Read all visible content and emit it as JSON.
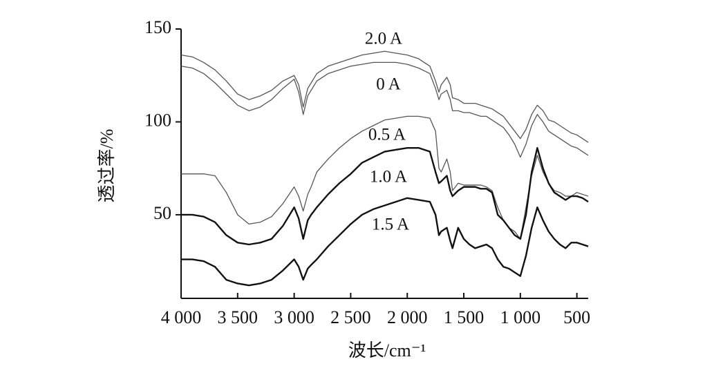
{
  "chart_data": {
    "type": "line",
    "xlabel": "波长/cm⁻¹",
    "ylabel": "透过率/%",
    "x": [
      4000,
      3900,
      3800,
      3700,
      3600,
      3500,
      3400,
      3300,
      3200,
      3100,
      3000,
      2960,
      2920,
      2880,
      2850,
      2800,
      2700,
      2600,
      2500,
      2400,
      2300,
      2200,
      2100,
      2000,
      1900,
      1800,
      1750,
      1720,
      1700,
      1650,
      1620,
      1600,
      1550,
      1500,
      1450,
      1400,
      1350,
      1300,
      1250,
      1200,
      1150,
      1100,
      1050,
      1000,
      950,
      900,
      850,
      800,
      750,
      700,
      650,
      600,
      550,
      500,
      450,
      400
    ],
    "series": [
      {
        "name": "2.0 A",
        "color": "#555555",
        "line_width": 1.3,
        "values": [
          136,
          135,
          132,
          128,
          122,
          115,
          112,
          114,
          117,
          122,
          125,
          120,
          108,
          118,
          121,
          126,
          130,
          132,
          134,
          136,
          137,
          138,
          137,
          136,
          134,
          130,
          122,
          116,
          120,
          124,
          120,
          113,
          112,
          110,
          110,
          110,
          109,
          108,
          107,
          105,
          103,
          99,
          95,
          91,
          96,
          104,
          109,
          106,
          101,
          100,
          98,
          96,
          94,
          93,
          91,
          89
        ]
      },
      {
        "name": "0 A",
        "color": "#555555",
        "line_width": 1.3,
        "values": [
          130,
          129,
          126,
          121,
          115,
          109,
          106,
          108,
          112,
          118,
          123,
          116,
          104,
          114,
          117,
          122,
          126,
          128,
          130,
          131,
          132,
          132,
          132,
          131,
          129,
          126,
          118,
          112,
          115,
          117,
          112,
          106,
          106,
          105,
          105,
          104,
          103,
          103,
          101,
          99,
          97,
          93,
          88,
          81,
          88,
          98,
          104,
          100,
          95,
          93,
          91,
          89,
          87,
          86,
          84,
          82
        ]
      },
      {
        "name": "0.5 A",
        "color": "#555555",
        "line_width": 1.3,
        "values": [
          72,
          72,
          72,
          71,
          62,
          50,
          45,
          46,
          49,
          56,
          65,
          60,
          52,
          61,
          65,
          73,
          80,
          86,
          91,
          95,
          98,
          101,
          102,
          103,
          103,
          102,
          95,
          75,
          73,
          80,
          73,
          63,
          67,
          66,
          66,
          66,
          66,
          65,
          63,
          54,
          47,
          43,
          41,
          37,
          54,
          71,
          82,
          73,
          67,
          63,
          62,
          60,
          60,
          62,
          61,
          60
        ]
      },
      {
        "name": "1.0 A",
        "color": "#111111",
        "line_width": 2.4,
        "values": [
          50,
          50,
          49,
          46,
          39,
          35,
          34,
          35,
          37,
          44,
          54,
          48,
          37,
          47,
          50,
          54,
          61,
          67,
          72,
          78,
          81,
          84,
          85,
          86,
          86,
          84,
          73,
          67,
          68,
          71,
          63,
          60,
          63,
          65,
          65,
          65,
          64,
          64,
          62,
          50,
          47,
          43,
          39,
          37,
          50,
          73,
          86,
          75,
          67,
          62,
          60,
          58,
          60,
          60,
          59,
          57
        ]
      },
      {
        "name": "1.5 A",
        "color": "#111111",
        "line_width": 2.4,
        "values": [
          26,
          26,
          25,
          22,
          15,
          13,
          12,
          13,
          15,
          20,
          26,
          22,
          15,
          21,
          23,
          26,
          33,
          39,
          45,
          50,
          53,
          55,
          57,
          59,
          58,
          57,
          50,
          39,
          41,
          43,
          36,
          32,
          43,
          37,
          34,
          32,
          33,
          34,
          32,
          26,
          22,
          21,
          19,
          17,
          28,
          43,
          54,
          47,
          41,
          37,
          34,
          32,
          35,
          35,
          34,
          33
        ]
      }
    ],
    "xlim": [
      4000,
      400
    ],
    "xticks": [
      {
        "value": 4000,
        "label": "4 000"
      },
      {
        "value": 3500,
        "label": "3 500"
      },
      {
        "value": 3000,
        "label": "3 000"
      },
      {
        "value": 2500,
        "label": "2 500"
      },
      {
        "value": 2000,
        "label": "2 000"
      },
      {
        "value": 1500,
        "label": "1 500"
      },
      {
        "value": 1000,
        "label": "1 000"
      },
      500
    ],
    "ylim": [
      5,
      150
    ],
    "yticks": [
      50,
      100,
      150
    ],
    "grid": false
  }
}
